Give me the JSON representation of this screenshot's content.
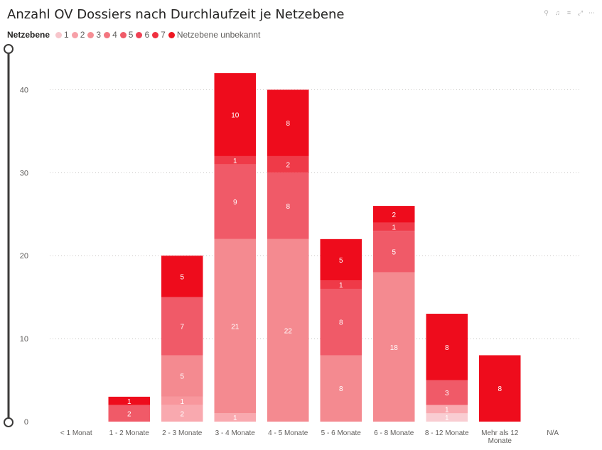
{
  "title": "Anzahl OV Dossiers nach Durchlaufzeit je Netzebene",
  "toolbar": {
    "icons": [
      "pin-icon",
      "bell-icon",
      "filter-icon",
      "focus-mode-icon",
      "more-options-icon"
    ],
    "glyphs": [
      "⚲",
      "♫",
      "≡",
      "⤢",
      "⋯"
    ]
  },
  "legend": {
    "title": "Netzebene",
    "items": [
      {
        "label": "1",
        "color": "#F7C5CB"
      },
      {
        "label": "2",
        "color": "#F7A0A8"
      },
      {
        "label": "3",
        "color": "#F58E94"
      },
      {
        "label": "4",
        "color": "#F3757F"
      },
      {
        "label": "5",
        "color": "#F05B68"
      },
      {
        "label": "6",
        "color": "#EF4154"
      },
      {
        "label": "7",
        "color": "#F0303F"
      },
      {
        "label": "Netzebene unbekannt",
        "color": "#EE1620"
      }
    ]
  },
  "chart_data": {
    "type": "bar",
    "stacked": true,
    "title": "Anzahl OV Dossiers nach Durchlaufzeit je Netzebene",
    "xlabel": "",
    "ylabel": "",
    "ylim": [
      0,
      45
    ],
    "yticks": [
      0,
      10,
      20,
      30,
      40
    ],
    "grid": true,
    "legend_position": "top-left",
    "categories": [
      "< 1 Monat",
      "1 - 2 Monate",
      "2 - 3 Monate",
      "3 - 4 Monate",
      "4 - 5 Monate",
      "5 - 6 Monate",
      "6 - 8 Monate",
      "8 - 12 Monate",
      "Mehr als 12 Monate",
      "N/A"
    ],
    "series": [
      {
        "name": "1",
        "color": "#F9CDD2",
        "values": [
          0,
          0,
          0,
          0,
          0,
          0,
          0,
          1,
          0,
          0
        ]
      },
      {
        "name": "2",
        "color": "#F9A9AF",
        "values": [
          0,
          0,
          2,
          1,
          0,
          0,
          0,
          1,
          0,
          0
        ]
      },
      {
        "name": "3",
        "color": "#F8979D",
        "values": [
          0,
          0,
          1,
          0,
          0,
          0,
          0,
          0,
          0,
          0
        ]
      },
      {
        "name": "4",
        "color": "#F48A90",
        "values": [
          0,
          0,
          5,
          21,
          22,
          8,
          18,
          0,
          0,
          0
        ]
      },
      {
        "name": "5",
        "color": "#F0707A",
        "values": [
          0,
          0,
          0,
          0,
          0,
          0,
          0,
          0,
          0,
          0
        ]
      },
      {
        "name": "6",
        "color": "#F05A68",
        "values": [
          0,
          2,
          7,
          9,
          8,
          8,
          5,
          3,
          0,
          0
        ]
      },
      {
        "name": "7",
        "color": "#EF3A48",
        "values": [
          0,
          0,
          0,
          1,
          2,
          1,
          1,
          0,
          0,
          0
        ]
      },
      {
        "name": "Netzebene unbekannt",
        "color": "#EE0C1C",
        "values": [
          0,
          1,
          5,
          10,
          8,
          5,
          2,
          8,
          8,
          0
        ]
      }
    ]
  }
}
